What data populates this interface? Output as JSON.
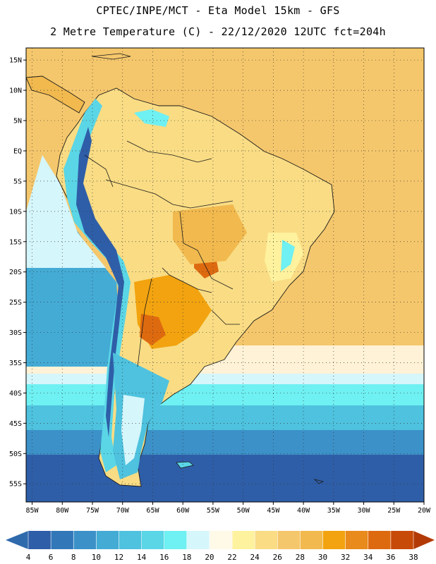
{
  "header": {
    "line1": "CPTEC/INPE/MCT -  Eta Model 15km - GFS",
    "line2": "2 Metre Temperature (C) - 22/12/2020 12UTC fct=204h"
  },
  "map": {
    "lon_range": [
      -86,
      -20
    ],
    "lat_range": [
      -58,
      17
    ],
    "lat_ticks": [
      {
        "lat": 15,
        "label": "15N"
      },
      {
        "lat": 10,
        "label": "10N"
      },
      {
        "lat": 5,
        "label": "5N"
      },
      {
        "lat": 0,
        "label": "EQ"
      },
      {
        "lat": -5,
        "label": "5S"
      },
      {
        "lat": -10,
        "label": "10S"
      },
      {
        "lat": -15,
        "label": "15S"
      },
      {
        "lat": -20,
        "label": "20S"
      },
      {
        "lat": -25,
        "label": "25S"
      },
      {
        "lat": -30,
        "label": "30S"
      },
      {
        "lat": -35,
        "label": "35S"
      },
      {
        "lat": -40,
        "label": "40S"
      },
      {
        "lat": -45,
        "label": "45S"
      },
      {
        "lat": -50,
        "label": "50S"
      },
      {
        "lat": -55,
        "label": "55S"
      }
    ],
    "lon_ticks": [
      {
        "lon": -85,
        "label": "85W"
      },
      {
        "lon": -80,
        "label": "80W"
      },
      {
        "lon": -75,
        "label": "75W"
      },
      {
        "lon": -70,
        "label": "70W"
      },
      {
        "lon": -65,
        "label": "65W"
      },
      {
        "lon": -60,
        "label": "60W"
      },
      {
        "lon": -55,
        "label": "55W"
      },
      {
        "lon": -50,
        "label": "50W"
      },
      {
        "lon": -45,
        "label": "45W"
      },
      {
        "lon": -40,
        "label": "40W"
      },
      {
        "lon": -35,
        "label": "35W"
      },
      {
        "lon": -30,
        "label": "30W"
      },
      {
        "lon": -25,
        "label": "25W"
      },
      {
        "lon": -20,
        "label": "20W"
      }
    ],
    "gridlines": "dotted"
  },
  "colorbar": {
    "labels": [
      "4",
      "6",
      "8",
      "10",
      "12",
      "14",
      "16",
      "18",
      "20",
      "22",
      "24",
      "26",
      "28",
      "30",
      "32",
      "34",
      "36",
      "38"
    ],
    "colors": [
      "#2f5ea8",
      "#3278b9",
      "#3c91c8",
      "#44abd5",
      "#4ec2de",
      "#5ad6e6",
      "#6ff0f2",
      "#d5f6fb",
      "#fff9e8",
      "#fff29e",
      "#f9dc84",
      "#f5c76c",
      "#f1b94e",
      "#f2a30f",
      "#e98a1c",
      "#de6a10",
      "#c84a08"
    ],
    "low_arrow_color": "#2f6aac",
    "high_arrow_color": "#b33a07"
  }
}
